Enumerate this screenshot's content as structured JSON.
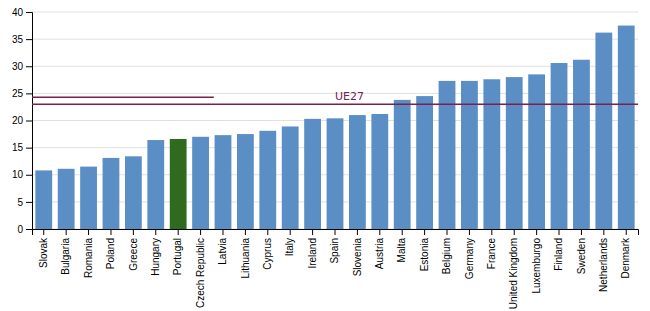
{
  "chart_data": {
    "type": "bar",
    "categories": [
      "Slovak",
      "Bulgaria",
      "Romania",
      "Poland",
      "Greece",
      "Hungary",
      "Portugal",
      "Czech Republic",
      "Latvia",
      "Lithuania",
      "Cyprus",
      "Italy",
      "Ireland",
      "Spain",
      "Slovenia",
      "Austria",
      "Malta",
      "Estonia",
      "Belgium",
      "Germany",
      "France",
      "United Kingdom",
      "Luxemburgo",
      "Finland",
      "Sweden",
      "Netherlands",
      "Denmark"
    ],
    "values": [
      10.8,
      11.1,
      11.5,
      13.1,
      13.4,
      16.4,
      16.6,
      17.0,
      17.3,
      17.5,
      18.1,
      18.9,
      20.3,
      20.4,
      21.0,
      21.2,
      23.8,
      24.5,
      27.3,
      27.3,
      27.6,
      28.0,
      28.5,
      30.6,
      31.2,
      36.2,
      37.5
    ],
    "colors": [
      "#5b8ec4",
      "#5b8ec4",
      "#5b8ec4",
      "#5b8ec4",
      "#5b8ec4",
      "#5b8ec4",
      "#2e6b1e",
      "#5b8ec4",
      "#5b8ec4",
      "#5b8ec4",
      "#5b8ec4",
      "#5b8ec4",
      "#5b8ec4",
      "#5b8ec4",
      "#5b8ec4",
      "#5b8ec4",
      "#5b8ec4",
      "#5b8ec4",
      "#5b8ec4",
      "#5b8ec4",
      "#5b8ec4",
      "#5b8ec4",
      "#5b8ec4",
      "#5b8ec4",
      "#5b8ec4",
      "#5b8ec4",
      "#5b8ec4"
    ],
    "reference_lines": [
      {
        "label": "UE27",
        "value": 23.0,
        "color": "#7b2051"
      }
    ],
    "ylim": [
      0,
      40
    ],
    "yticks": [
      0,
      5,
      10,
      15,
      20,
      25,
      30,
      35,
      40
    ],
    "grid": true
  }
}
